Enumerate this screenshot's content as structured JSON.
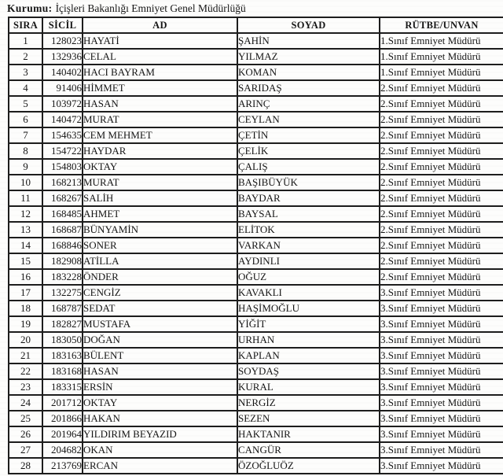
{
  "header": {
    "label": "Kurumu:",
    "value": "İçişleri Bakanlığı Emniyet Genel Müdürlüğü"
  },
  "table": {
    "columns": [
      "SIRA",
      "SİCİL",
      "AD",
      "SOYAD",
      "RÜTBE/UNVAN"
    ],
    "rows": [
      {
        "sira": "1",
        "sicil": "128023",
        "ad": "HAYATİ",
        "soyad": "ŞAHİN",
        "rutbe": "1.Sınıf Emniyet Müdürü"
      },
      {
        "sira": "2",
        "sicil": "132936",
        "ad": "CELAL",
        "soyad": "YILMAZ",
        "rutbe": "1.Sınıf Emniyet Müdürü"
      },
      {
        "sira": "3",
        "sicil": "140402",
        "ad": "HACI BAYRAM",
        "soyad": "KOMAN",
        "rutbe": "1.Sınıf Emniyet Müdürü"
      },
      {
        "sira": "4",
        "sicil": "91406",
        "ad": "HİMMET",
        "soyad": "SARIDAŞ",
        "rutbe": "2.Sınıf Emniyet Müdürü"
      },
      {
        "sira": "5",
        "sicil": "103972",
        "ad": "HASAN",
        "soyad": "ARINÇ",
        "rutbe": "2.Sınıf Emniyet Müdürü"
      },
      {
        "sira": "6",
        "sicil": "140472",
        "ad": "MURAT",
        "soyad": "CEYLAN",
        "rutbe": "2.Sınıf Emniyet Müdürü"
      },
      {
        "sira": "7",
        "sicil": "154635",
        "ad": "CEM MEHMET",
        "soyad": "ÇETİN",
        "rutbe": "2.Sınıf Emniyet Müdürü"
      },
      {
        "sira": "8",
        "sicil": "154722",
        "ad": "HAYDAR",
        "soyad": "ÇELİK",
        "rutbe": "2.Sınıf Emniyet Müdürü"
      },
      {
        "sira": "9",
        "sicil": "154803",
        "ad": "OKTAY",
        "soyad": "ÇALIŞ",
        "rutbe": "2.Sınıf Emniyet Müdürü"
      },
      {
        "sira": "10",
        "sicil": "168213",
        "ad": "MURAT",
        "soyad": "BAŞIBÜYÜK",
        "rutbe": "2.Sınıf Emniyet Müdürü"
      },
      {
        "sira": "11",
        "sicil": "168267",
        "ad": "SALİH",
        "soyad": "BAYDAR",
        "rutbe": "2.Sınıf Emniyet Müdürü"
      },
      {
        "sira": "12",
        "sicil": "168485",
        "ad": "AHMET",
        "soyad": "BAYSAL",
        "rutbe": "2.Sınıf Emniyet Müdürü"
      },
      {
        "sira": "13",
        "sicil": "168687",
        "ad": "BÜNYAMİN",
        "soyad": "ELİTOK",
        "rutbe": "2.Sınıf Emniyet Müdürü"
      },
      {
        "sira": "14",
        "sicil": "168846",
        "ad": "SONER",
        "soyad": "VARKAN",
        "rutbe": "2.Sınıf Emniyet Müdürü"
      },
      {
        "sira": "15",
        "sicil": "182908",
        "ad": "ATİLLA",
        "soyad": "AYDINLI",
        "rutbe": "2.Sınıf Emniyet Müdürü"
      },
      {
        "sira": "16",
        "sicil": "183228",
        "ad": "ÖNDER",
        "soyad": "OĞUZ",
        "rutbe": "2.Sınıf Emniyet Müdürü"
      },
      {
        "sira": "17",
        "sicil": "132275",
        "ad": "CENGİZ",
        "soyad": "KAVAKLI",
        "rutbe": "3.Sınıf Emniyet Müdürü"
      },
      {
        "sira": "18",
        "sicil": "168787",
        "ad": "SEDAT",
        "soyad": "HAŞİMOĞLU",
        "rutbe": "3.Sınıf Emniyet Müdürü"
      },
      {
        "sira": "19",
        "sicil": "182827",
        "ad": "MUSTAFA",
        "soyad": "YİĞİT",
        "rutbe": "3.Sınıf Emniyet Müdürü"
      },
      {
        "sira": "20",
        "sicil": "183050",
        "ad": "DOĞAN",
        "soyad": "URHAN",
        "rutbe": "3.Sınıf Emniyet Müdürü"
      },
      {
        "sira": "21",
        "sicil": "183163",
        "ad": "BÜLENT",
        "soyad": "KAPLAN",
        "rutbe": "3.Sınıf Emniyet Müdürü"
      },
      {
        "sira": "22",
        "sicil": "183168",
        "ad": "HASAN",
        "soyad": "SOYDAŞ",
        "rutbe": "3.Sınıf Emniyet Müdürü"
      },
      {
        "sira": "23",
        "sicil": "183315",
        "ad": "ERSİN",
        "soyad": "KURAL",
        "rutbe": "3.Sınıf Emniyet Müdürü"
      },
      {
        "sira": "24",
        "sicil": "201712",
        "ad": "OKTAY",
        "soyad": "NERGİZ",
        "rutbe": "3.Sınıf Emniyet Müdürü"
      },
      {
        "sira": "25",
        "sicil": "201866",
        "ad": "HAKAN",
        "soyad": "SEZEN",
        "rutbe": "3.Sınıf Emniyet Müdürü"
      },
      {
        "sira": "26",
        "sicil": "201964",
        "ad": "YILDIRIM BEYAZID",
        "soyad": "HAKTANIR",
        "rutbe": "3.Sınıf Emniyet Müdürü"
      },
      {
        "sira": "27",
        "sicil": "204682",
        "ad": "OKAN",
        "soyad": "CANGÜR",
        "rutbe": "3.Sınıf Emniyet Müdürü"
      },
      {
        "sira": "28",
        "sicil": "213769",
        "ad": "ERCAN",
        "soyad": "ÖZOĞLUÖZ",
        "rutbe": "3.Sınıf Emniyet Müdürü"
      }
    ]
  },
  "colors": {
    "text": "#161616",
    "border": "#1d1d1d",
    "background": "#fdfdfc"
  }
}
